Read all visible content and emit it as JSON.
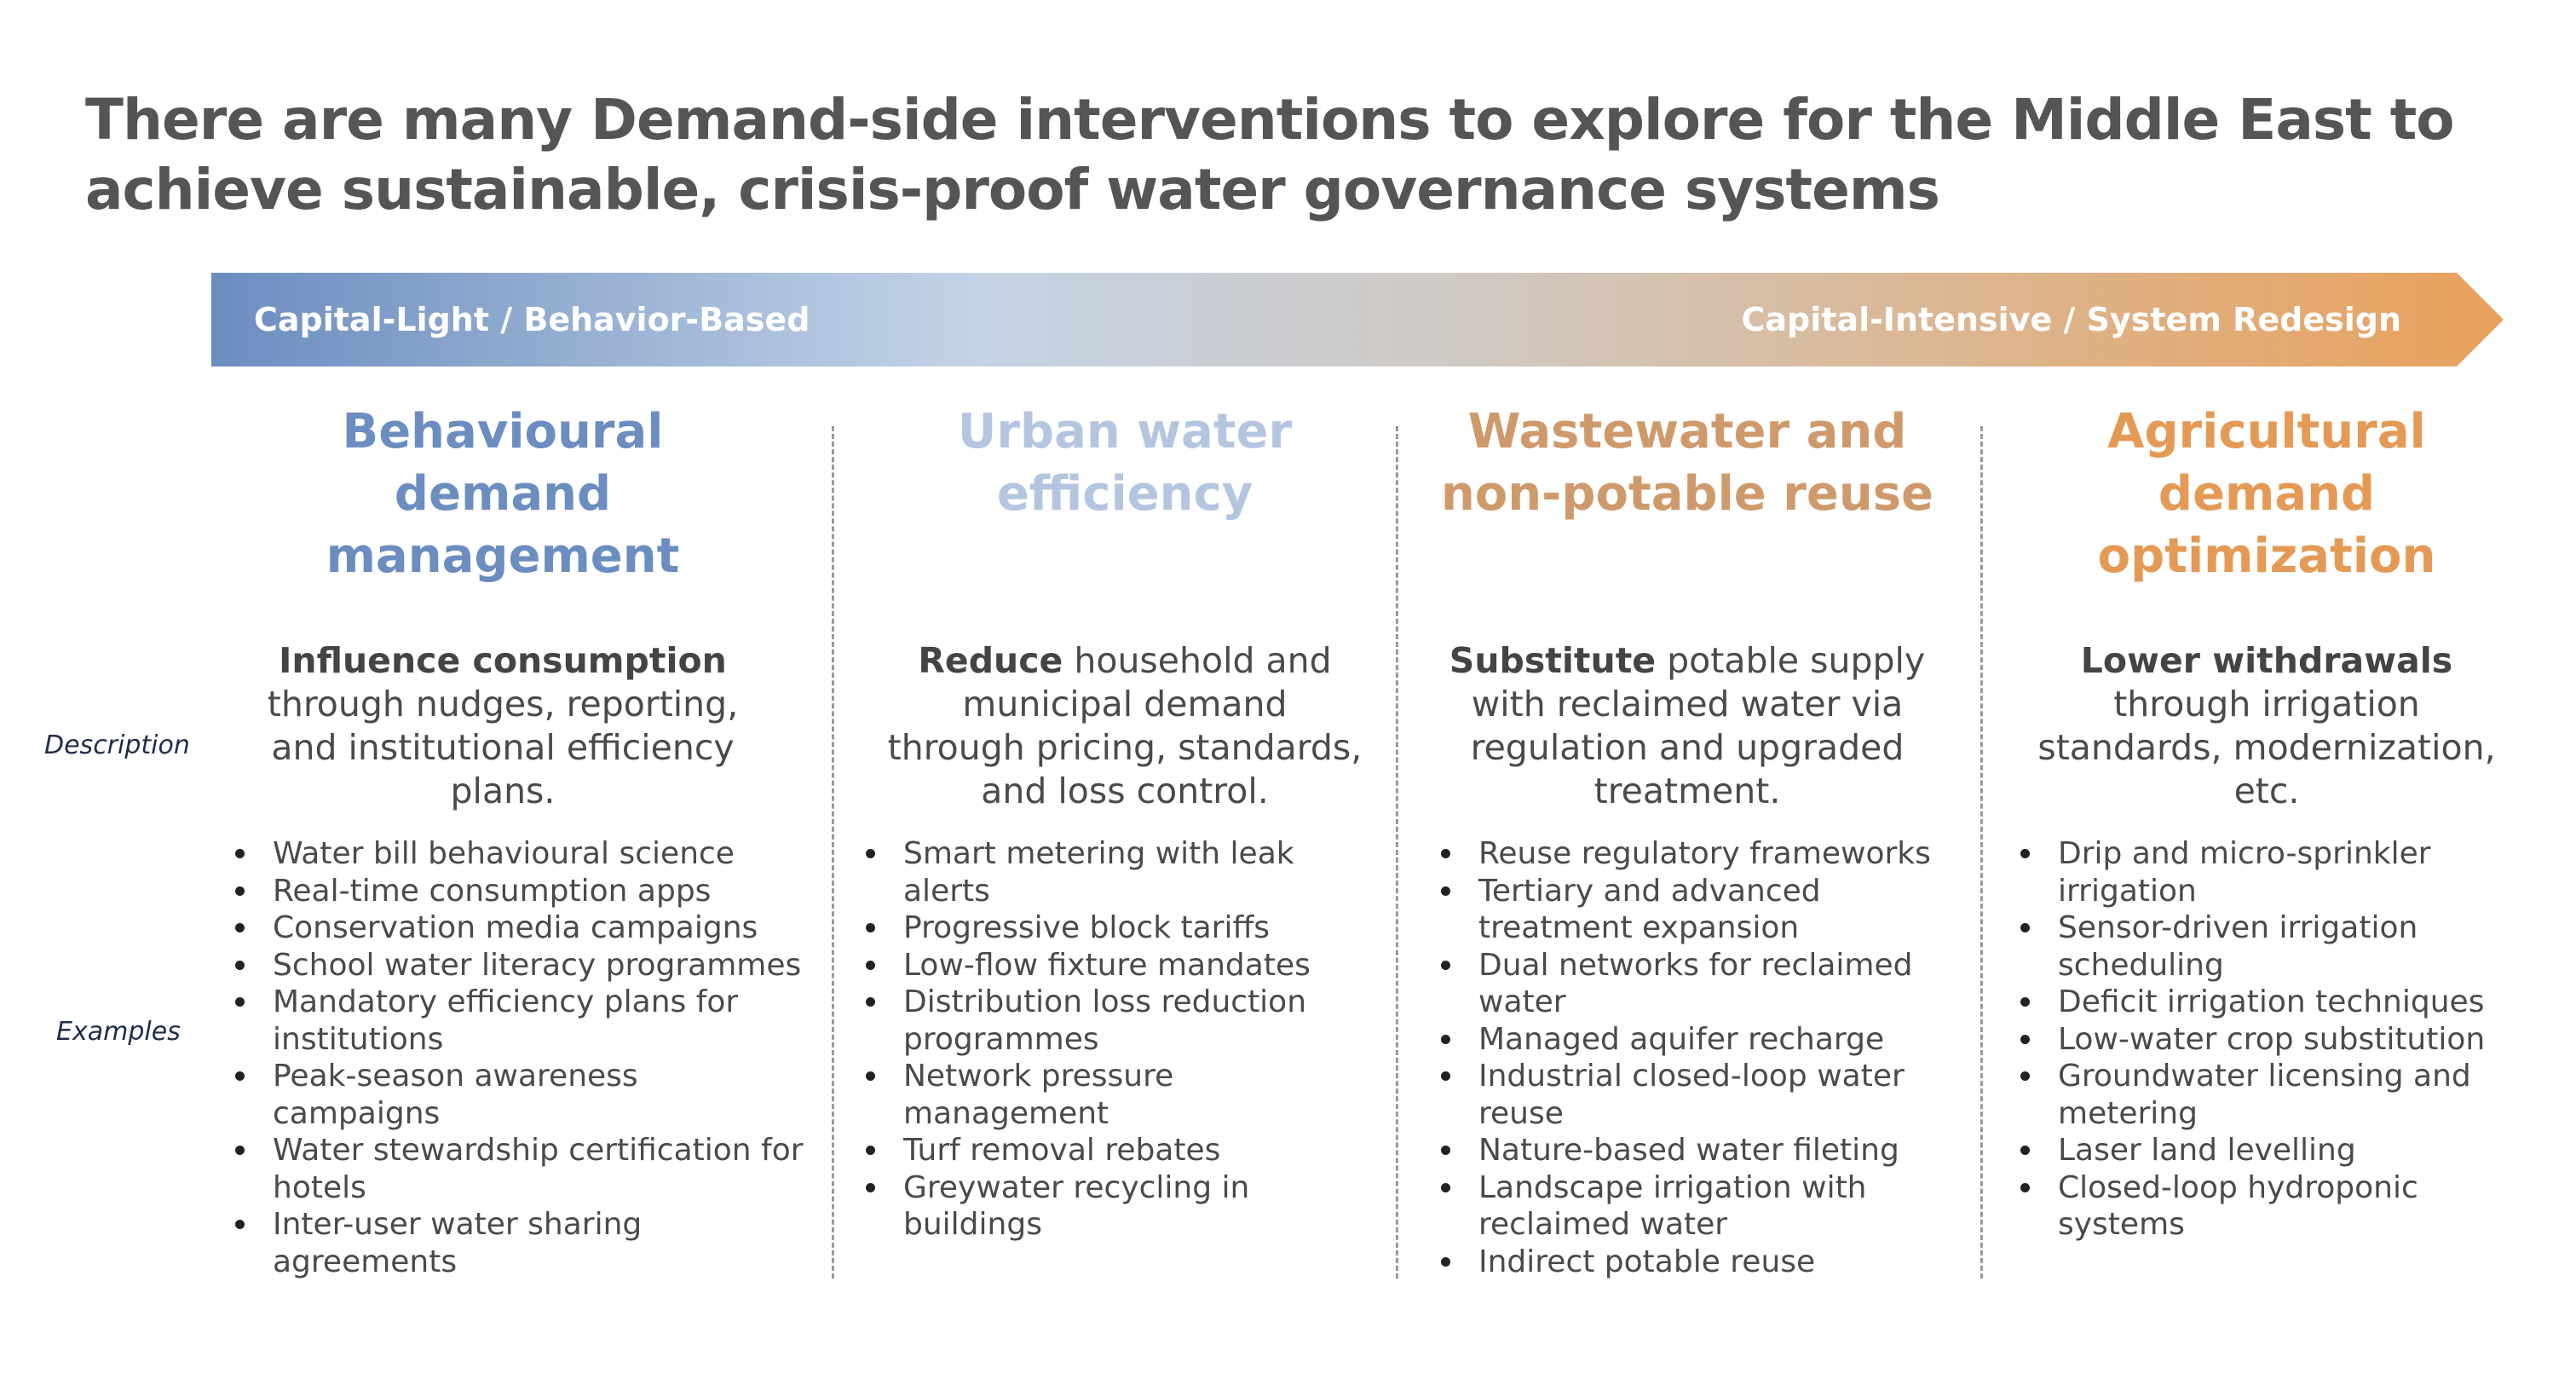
{
  "title": {
    "line1": "There are many Demand-side interventions to explore for the Middle East to",
    "line2": "achieve sustainable, crisis-proof water governance systems"
  },
  "arrow": {
    "left_label": "Capital-Light / Behavior-Based",
    "right_label": "Capital-Intensive / System Redesign",
    "gradient_colors": [
      "#6b8dbf",
      "#c3d3e6",
      "#e8a15c"
    ]
  },
  "row_labels": {
    "description": "Description",
    "examples": "Examples"
  },
  "columns": [
    {
      "title_lines": [
        "Behavioural",
        "demand",
        "management"
      ],
      "color": "#6b8dbf",
      "desc_bold": "Influence consumption",
      "desc_lines": [
        "through nudges, reporting,",
        "and institutional efficiency",
        "plans."
      ],
      "examples": [
        [
          "Water bill behavioural science"
        ],
        [
          "Real-time consumption apps"
        ],
        [
          "Conservation media campaigns"
        ],
        [
          "School water literacy programmes"
        ],
        [
          "Mandatory efficiency plans for",
          "institutions"
        ],
        [
          "Peak-season awareness",
          "campaigns"
        ],
        [
          "Water stewardship certification for",
          "hotels"
        ],
        [
          "Inter-user water sharing",
          "agreements"
        ]
      ]
    },
    {
      "title_lines": [
        "Urban water",
        "efficiency"
      ],
      "color": "#b4c6df",
      "desc_bold": "Reduce",
      "desc_first_rest": " household and",
      "desc_lines": [
        "municipal demand",
        "through pricing, standards,",
        "and loss control."
      ],
      "examples": [
        [
          "Smart metering with leak",
          "alerts"
        ],
        [
          "Progressive block tariffs"
        ],
        [
          "Low-flow fixture mandates"
        ],
        [
          "Distribution loss reduction",
          "programmes"
        ],
        [
          "Network pressure",
          "management"
        ],
        [
          "Turf removal rebates"
        ],
        [
          "Greywater recycling in",
          "buildings"
        ]
      ]
    },
    {
      "title_lines": [
        "Wastewater and",
        "non-potable reuse"
      ],
      "color": "#cf9a6b",
      "desc_bold": "Substitute",
      "desc_first_rest": " potable supply",
      "desc_lines": [
        "with reclaimed water via",
        "regulation and upgraded",
        "treatment."
      ],
      "examples": [
        [
          "Reuse regulatory frameworks"
        ],
        [
          "Tertiary and advanced",
          "treatment expansion"
        ],
        [
          "Dual networks for reclaimed",
          "water"
        ],
        [
          "Managed aquifer recharge"
        ],
        [
          "Industrial closed-loop water",
          "reuse"
        ],
        [
          "Nature-based water fileting"
        ],
        [
          "Landscape irrigation with",
          "reclaimed water"
        ],
        [
          "Indirect potable reuse"
        ]
      ]
    },
    {
      "title_lines": [
        "Agricultural",
        "demand",
        "optimization"
      ],
      "color": "#e49a55",
      "desc_bold": "Lower withdrawals",
      "desc_lines": [
        "through irrigation",
        "standards, modernization,",
        "etc."
      ],
      "examples": [
        [
          "Drip and micro-sprinkler",
          "irrigation"
        ],
        [
          "Sensor-driven irrigation",
          "scheduling"
        ],
        [
          "Deficit irrigation techniques"
        ],
        [
          "Low-water crop substitution"
        ],
        [
          "Groundwater licensing and",
          "metering"
        ],
        [
          "Laser land levelling"
        ],
        [
          "Closed-loop hydroponic",
          "systems"
        ]
      ]
    }
  ]
}
